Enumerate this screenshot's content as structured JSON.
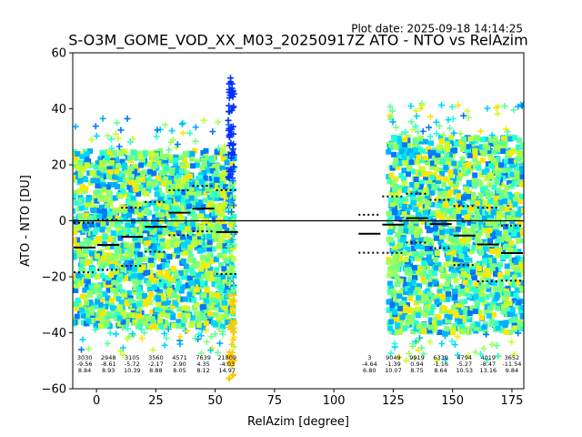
{
  "plot_date": "Plot date: 2025-09-18 14:14:25",
  "chart_data": {
    "type": "scatter",
    "title": "S-O3M_GOME_VOD_XX_M03_20250917Z ATO - NTO vs RelAzim",
    "xlabel": "RelAzim [degree]",
    "ylabel": "ATO - NTO [DU]",
    "xlim": [
      -10,
      180
    ],
    "ylim": [
      -60,
      60
    ],
    "xticks": [
      0,
      25,
      50,
      75,
      100,
      125,
      150,
      175
    ],
    "yticks": [
      -60,
      -40,
      -20,
      0,
      20,
      40,
      60
    ],
    "zero_line": 0,
    "bins": [
      {
        "x0": -10,
        "x1": 0,
        "count": "3030",
        "mean": "-9.56",
        "std": "8.84",
        "m": -9.56,
        "s": 8.84
      },
      {
        "x0": 0,
        "x1": 10,
        "count": "2948",
        "mean": "-8.61",
        "std": "8.93",
        "m": -8.61,
        "s": 8.93
      },
      {
        "x0": 10,
        "x1": 20,
        "count": "3105",
        "mean": "-5.72",
        "std": "10.39",
        "m": -5.72,
        "s": 10.39
      },
      {
        "x0": 20,
        "x1": 30,
        "count": "3560",
        "mean": "-2.17",
        "std": "8.88",
        "m": -2.17,
        "s": 8.88
      },
      {
        "x0": 30,
        "x1": 40,
        "count": "4571",
        "mean": "2.90",
        "std": "8.05",
        "m": 2.9,
        "s": 8.05
      },
      {
        "x0": 40,
        "x1": 50,
        "count": "7639",
        "mean": "4.35",
        "std": "8.12",
        "m": 4.35,
        "s": 8.12
      },
      {
        "x0": 50,
        "x1": 60,
        "count": "21809",
        "mean": "-4.03",
        "std": "14.97",
        "m": -4.03,
        "s": 14.97
      },
      {
        "x0": 110,
        "x1": 120,
        "count": "3",
        "mean": "-4.64",
        "std": "6.80",
        "m": -4.64,
        "s": 6.8
      },
      {
        "x0": 120,
        "x1": 130,
        "count": "9049",
        "mean": "-1.39",
        "std": "10.07",
        "m": -1.39,
        "s": 10.07
      },
      {
        "x0": 130,
        "x1": 140,
        "count": "9919",
        "mean": "0.94",
        "std": "8.75",
        "m": 0.94,
        "s": 8.75
      },
      {
        "x0": 140,
        "x1": 150,
        "count": "6339",
        "mean": "-1.16",
        "std": "8.64",
        "m": -1.16,
        "s": 8.64
      },
      {
        "x0": 150,
        "x1": 160,
        "count": "4794",
        "mean": "-5.27",
        "std": "10.53",
        "m": -5.27,
        "s": 10.53
      },
      {
        "x0": 160,
        "x1": 170,
        "count": "4019",
        "mean": "-8.47",
        "std": "13.16",
        "m": -8.47,
        "s": 13.16
      },
      {
        "x0": 170,
        "x1": 180,
        "count": "3652",
        "mean": "-11.54",
        "std": "9.84",
        "m": -11.54,
        "s": 9.84
      }
    ],
    "scatter_regions": [
      {
        "x0": -10,
        "x1": 58,
        "ylo": -38,
        "yhi": 25
      },
      {
        "x0": 123,
        "x1": 180,
        "ylo": -40,
        "yhi": 30
      }
    ],
    "colors": [
      "#00d5ff",
      "#5eff9c",
      "#9dff5b",
      "#26ffd2",
      "#ffe500",
      "#0077ff",
      "#c7ff2f",
      "#7dff7a",
      "#00b0ff"
    ]
  }
}
